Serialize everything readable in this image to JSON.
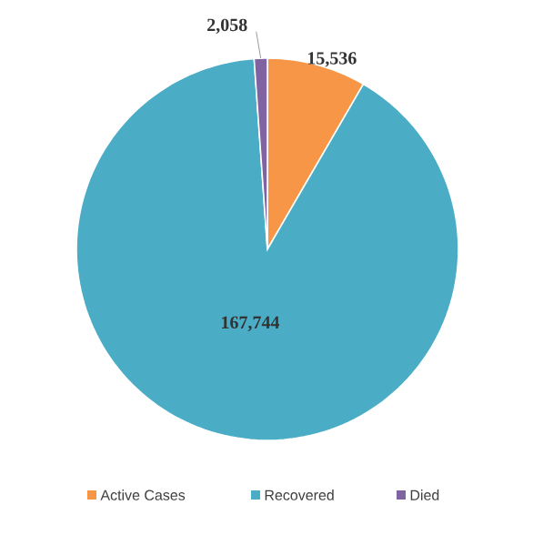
{
  "chart_data": {
    "type": "pie",
    "categories": [
      "Active Cases",
      "Recovered",
      "Died"
    ],
    "values": [
      15536,
      167744,
      2058
    ],
    "value_labels": [
      "15,536",
      "167,744",
      "2,058"
    ],
    "colors": [
      "#f79646",
      "#4bacc6",
      "#8064a2"
    ],
    "legend": "bottom"
  }
}
